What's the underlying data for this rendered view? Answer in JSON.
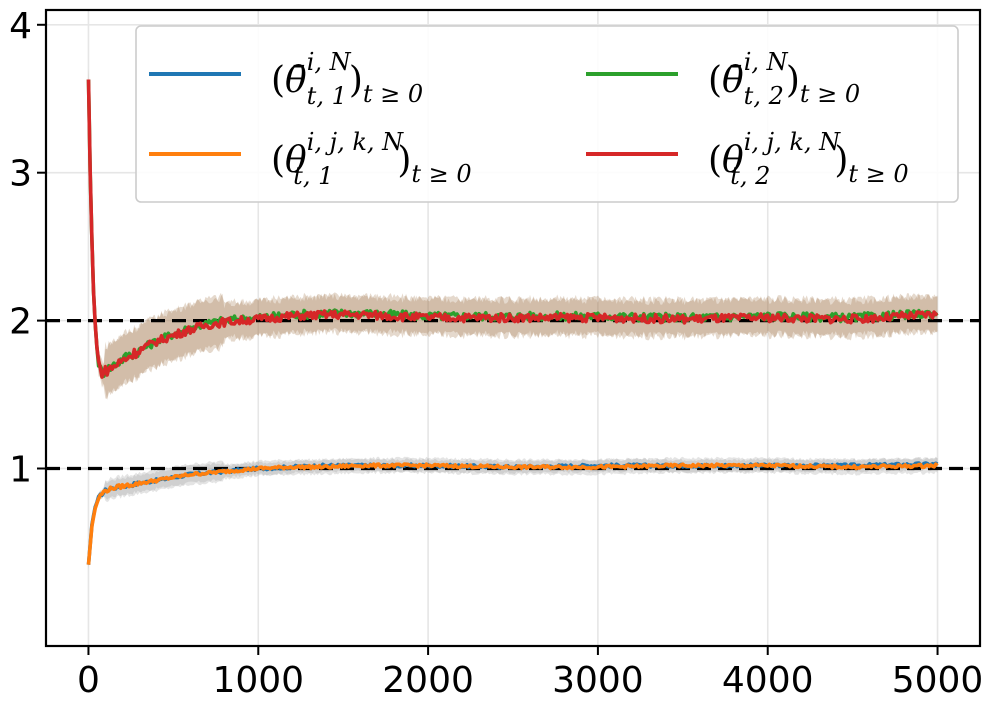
{
  "chart_data": {
    "type": "line",
    "title": "",
    "xlabel": "",
    "ylabel": "",
    "xlim": [
      -250,
      5250
    ],
    "ylim": [
      -0.2,
      4.1
    ],
    "xticks": [
      0,
      1000,
      2000,
      3000,
      4000,
      5000
    ],
    "yticks": [
      1,
      2,
      3,
      4
    ],
    "grid": true,
    "legend_position": "top-right",
    "reference_lines": [
      {
        "y": 1,
        "style": "dashed",
        "color": "#000000"
      },
      {
        "y": 2,
        "style": "dashed",
        "color": "#000000"
      }
    ],
    "series": [
      {
        "name": "theta_bar_1",
        "legend": {
          "open": "(",
          "base": "θ̄",
          "sup": "i, N",
          "sub": "t, 1",
          "close": ")",
          "tail": "t ≥ 0"
        },
        "color": "#1f77b4",
        "x": [
          0,
          20,
          40,
          60,
          80,
          100,
          150,
          200,
          300,
          400,
          500,
          600,
          700,
          800,
          900,
          1000,
          1200,
          1400,
          1600,
          1800,
          2000,
          2500,
          3000,
          3500,
          4000,
          4500,
          5000
        ],
        "y": [
          0.35,
          0.62,
          0.74,
          0.8,
          0.83,
          0.85,
          0.87,
          0.88,
          0.9,
          0.92,
          0.94,
          0.96,
          0.97,
          0.98,
          0.99,
          1.0,
          1.01,
          1.02,
          1.02,
          1.02,
          1.02,
          1.01,
          1.02,
          1.02,
          1.02,
          1.02,
          1.03
        ],
        "band": 0.04
      },
      {
        "name": "theta_bar_2",
        "legend": {
          "open": "(",
          "base": "θ̄",
          "sup": "i, N",
          "sub": "t, 2",
          "close": ")",
          "tail": "t ≥ 0"
        },
        "color": "#2ca02c",
        "x": [
          0,
          10,
          20,
          30,
          40,
          50,
          60,
          70,
          80,
          100,
          150,
          200,
          300,
          400,
          500,
          600,
          700,
          800,
          900,
          1000,
          1200,
          1400,
          1600,
          1800,
          2000,
          2500,
          3000,
          3500,
          4000,
          4500,
          5000
        ],
        "y": [
          3.63,
          3.0,
          2.55,
          2.2,
          1.98,
          1.82,
          1.72,
          1.67,
          1.65,
          1.66,
          1.7,
          1.74,
          1.8,
          1.86,
          1.91,
          1.95,
          1.98,
          2.0,
          2.01,
          2.02,
          2.04,
          2.05,
          2.05,
          2.04,
          2.03,
          2.03,
          2.03,
          2.02,
          2.03,
          2.02,
          2.05
        ],
        "band": 0.12
      },
      {
        "name": "theta_particle_1",
        "legend": {
          "open": "(",
          "base": "θ",
          "sup": "i, j, k, N",
          "sub": "t, 1",
          "close": ")",
          "tail": "t ≥ 0"
        },
        "color": "#ff7f0e",
        "x": [
          0,
          20,
          40,
          60,
          80,
          100,
          150,
          200,
          300,
          400,
          500,
          600,
          700,
          800,
          900,
          1000,
          1200,
          1400,
          1600,
          1800,
          2000,
          2500,
          3000,
          3500,
          4000,
          4500,
          5000
        ],
        "y": [
          0.35,
          0.61,
          0.73,
          0.8,
          0.83,
          0.85,
          0.87,
          0.88,
          0.9,
          0.92,
          0.94,
          0.96,
          0.97,
          0.98,
          0.99,
          1.0,
          1.01,
          1.01,
          1.02,
          1.02,
          1.02,
          1.01,
          1.01,
          1.02,
          1.02,
          1.01,
          1.02
        ],
        "band": 0.05
      },
      {
        "name": "theta_particle_2",
        "legend": {
          "open": "(",
          "base": "θ",
          "sup": "i, j, k, N",
          "sub": "t, 2",
          "close": ")",
          "tail": "t ≥ 0"
        },
        "color": "#d62728",
        "x": [
          0,
          10,
          20,
          30,
          40,
          50,
          60,
          70,
          80,
          100,
          150,
          200,
          300,
          400,
          500,
          600,
          700,
          800,
          900,
          1000,
          1200,
          1400,
          1600,
          1800,
          2000,
          2500,
          3000,
          3500,
          4000,
          4500,
          5000
        ],
        "y": [
          3.63,
          3.0,
          2.55,
          2.2,
          1.98,
          1.82,
          1.72,
          1.67,
          1.65,
          1.66,
          1.69,
          1.73,
          1.8,
          1.86,
          1.9,
          1.94,
          1.97,
          1.99,
          2.0,
          2.01,
          2.03,
          2.04,
          2.04,
          2.03,
          2.02,
          2.02,
          2.02,
          2.01,
          2.02,
          2.01,
          2.04
        ],
        "band": 0.12
      }
    ]
  }
}
